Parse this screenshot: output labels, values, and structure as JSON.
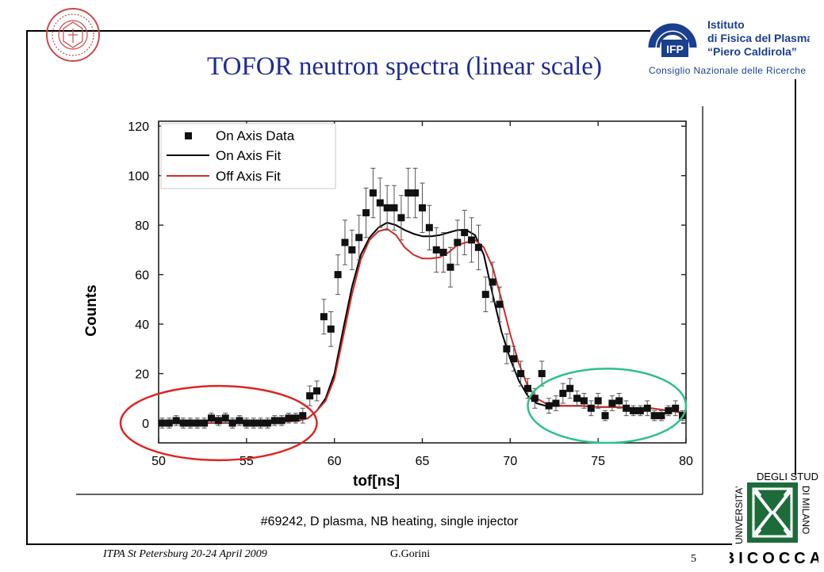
{
  "slide": {
    "title": "TOFOR neutron spectra (linear scale)",
    "caption": "#69242, D plasma, NB heating, single injector",
    "footer_event": "ITPA St Petersburg 20-24 April 2009",
    "footer_author": "G.Gorini",
    "page_number": "5"
  },
  "logos": {
    "institute_line1": "Istituto",
    "institute_line2": "di Fisica del Plasma",
    "institute_line3": "“Piero Caldirola”",
    "institute_line4": "Consiglio Nazionale delle Ricerche",
    "institute_mark": "IFP",
    "university_vertical_left": "UNIVERSITA'",
    "university_top": "DEGLI STUDI",
    "university_vertical_right": "DI MILANO",
    "university_bottom": "BICOCCA",
    "seal_text": "UNIVERSITAS"
  },
  "colors": {
    "title": "#1f2a96",
    "on_axis_fit": "#000000",
    "off_axis_fit": "#d42a2a",
    "data": "#111111",
    "ellipse_left": "#e02424",
    "ellipse_right": "#2fbf8e",
    "logo_blue": "#1b3f8f",
    "logo_green": "#1d6b3a"
  },
  "chart_data": {
    "type": "scatter",
    "xlabel": "tof[ns]",
    "ylabel": "Counts",
    "xlim": [
      50,
      80
    ],
    "ylim": [
      -8,
      122
    ],
    "xticks": [
      50,
      55,
      60,
      65,
      70,
      75,
      80
    ],
    "yticks": [
      0,
      20,
      40,
      60,
      80,
      100,
      120
    ],
    "grid": false,
    "legend_position": "top-left",
    "legend": [
      "On Axis Data",
      "On Axis Fit",
      "Off Axis Fit"
    ],
    "series": [
      {
        "name": "On Axis Data",
        "kind": "points_with_errorbars",
        "x": [
          50.2,
          50.6,
          51.0,
          51.4,
          51.8,
          52.2,
          52.6,
          53.0,
          53.4,
          53.8,
          54.2,
          54.6,
          55.0,
          55.4,
          55.8,
          56.2,
          56.6,
          57.0,
          57.4,
          57.8,
          58.2,
          58.6,
          59.0,
          59.4,
          59.8,
          60.2,
          60.6,
          61.0,
          61.4,
          61.8,
          62.2,
          62.6,
          63.0,
          63.4,
          63.8,
          64.2,
          64.6,
          65.0,
          65.4,
          65.8,
          66.2,
          66.6,
          67.0,
          67.4,
          67.8,
          68.2,
          68.6,
          69.0,
          69.4,
          69.8,
          70.2,
          70.6,
          71.0,
          71.4,
          71.8,
          72.2,
          72.6,
          73.0,
          73.4,
          73.8,
          74.2,
          74.6,
          75.0,
          75.4,
          75.8,
          76.2,
          76.6,
          77.0,
          77.4,
          77.8,
          78.2,
          78.6,
          79.0,
          79.4,
          79.8
        ],
        "y": [
          0,
          0,
          1,
          0,
          0,
          0,
          0,
          2,
          1,
          2,
          0,
          1,
          0,
          0,
          0,
          0,
          1,
          1,
          2,
          2,
          3,
          11,
          13,
          43,
          38,
          60,
          73,
          70,
          75,
          85,
          93,
          89,
          87,
          87,
          83,
          93,
          93,
          87,
          79,
          70,
          69,
          63,
          73,
          77,
          74,
          71,
          52,
          57,
          48,
          30,
          26,
          20,
          14,
          10,
          20,
          7,
          8,
          12,
          14,
          10,
          9,
          6,
          9,
          3,
          8,
          9,
          6,
          5,
          5,
          6,
          3,
          3,
          5,
          6,
          3
        ],
        "err": [
          2,
          2,
          2,
          2,
          2,
          2,
          2,
          2,
          2,
          2,
          2,
          2,
          2,
          2,
          2,
          2,
          2,
          2,
          2,
          2,
          3,
          4,
          4,
          7,
          7,
          8,
          9,
          8,
          9,
          10,
          10,
          10,
          9,
          9,
          9,
          10,
          10,
          10,
          9,
          9,
          8,
          8,
          9,
          9,
          9,
          9,
          7,
          8,
          7,
          6,
          5,
          5,
          4,
          4,
          5,
          3,
          3,
          4,
          4,
          3,
          3,
          3,
          3,
          2,
          3,
          3,
          3,
          2,
          2,
          3,
          2,
          2,
          2,
          3,
          2
        ]
      },
      {
        "name": "On Axis Fit",
        "kind": "line",
        "x": [
          50,
          55,
          57,
          58,
          58.5,
          59,
          59.5,
          60,
          60.5,
          61,
          61.5,
          62,
          62.5,
          63,
          63.5,
          64,
          64.5,
          65,
          65.5,
          66,
          66.5,
          67,
          67.5,
          68,
          68.5,
          69,
          69.5,
          70,
          70.5,
          71,
          71.5,
          72,
          73,
          74,
          75,
          76,
          77,
          78,
          79,
          80
        ],
        "y": [
          0,
          0,
          0.5,
          1,
          2,
          5,
          10,
          20,
          38,
          55,
          68,
          75,
          79,
          81,
          80,
          78,
          76.5,
          75.5,
          75.5,
          76,
          77,
          78,
          78,
          76,
          68,
          52,
          37,
          26,
          17,
          11,
          8,
          7,
          7,
          7,
          6.5,
          6.5,
          6,
          6,
          5,
          4
        ]
      },
      {
        "name": "Off Axis Fit",
        "kind": "line",
        "x": [
          50,
          55,
          57,
          58,
          58.5,
          59,
          59.5,
          60,
          60.5,
          61,
          61.5,
          62,
          62.5,
          63,
          63.5,
          64,
          64.5,
          65,
          65.5,
          66,
          66.5,
          67,
          67.5,
          68,
          68.5,
          69,
          69.5,
          70,
          70.5,
          71,
          71.5,
          72,
          73,
          74,
          75,
          76,
          77,
          78,
          79,
          80
        ],
        "y": [
          0,
          0,
          0.5,
          1,
          2,
          5,
          9,
          18,
          35,
          52,
          66,
          74,
          77.5,
          78.5,
          76,
          71,
          68,
          66.5,
          66.5,
          67,
          69,
          72,
          73,
          74,
          71,
          63,
          50,
          36,
          24,
          15,
          10,
          8,
          7,
          7,
          6.5,
          6.5,
          6,
          6,
          5,
          4
        ]
      }
    ],
    "annotations": [
      {
        "type": "ellipse",
        "color": "red",
        "region_x": [
          50,
          59
        ],
        "region_y": [
          -15,
          15
        ]
      },
      {
        "type": "ellipse",
        "color": "green",
        "region_x": [
          71,
          80
        ],
        "region_y": [
          -8,
          22
        ]
      }
    ]
  }
}
